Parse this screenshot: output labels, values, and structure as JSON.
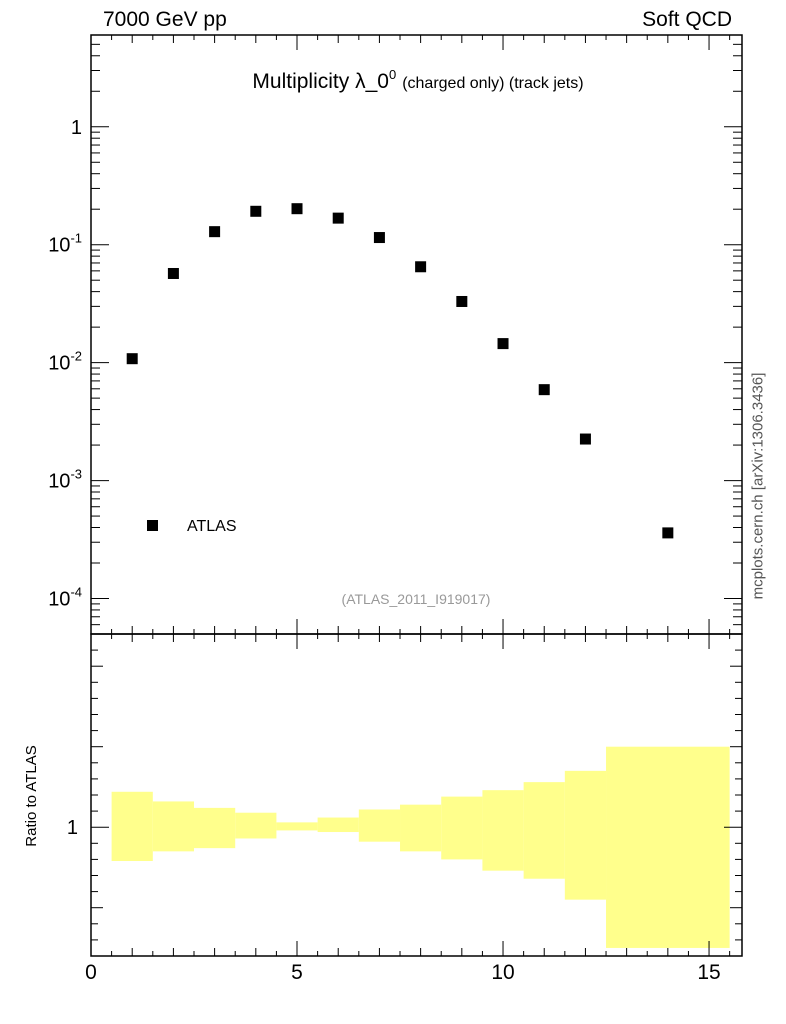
{
  "header": {
    "left": "7000 GeV pp",
    "right": "Soft QCD"
  },
  "side_label": "mcplots.cern.ch [arXiv:1306.3436]",
  "chart_data": [
    {
      "type": "scatter",
      "title": "Multiplicity λ_0",
      "title_superscript": "0",
      "title_suffix": "(charged only) (track jets)",
      "y_scale": "log",
      "xlim": [
        0,
        15.8
      ],
      "ylim": [
        5e-05,
        6
      ],
      "y_tick_labels": [
        "10",
        "10",
        "10",
        "10",
        "1"
      ],
      "y_tick_exponents": [
        "-4",
        "-3",
        "-2",
        "-1",
        ""
      ],
      "legend": {
        "label": "ATLAS",
        "position": "bottom-left"
      },
      "annotation": "(ATLAS_2011_I919017)",
      "marker_color": "#000000",
      "series": [
        {
          "name": "ATLAS",
          "x": [
            1,
            2,
            3,
            4,
            5,
            6,
            7,
            8,
            9,
            10,
            11,
            12,
            14
          ],
          "y": [
            0.0108,
            0.057,
            0.129,
            0.192,
            0.202,
            0.168,
            0.115,
            0.065,
            0.033,
            0.0145,
            0.0059,
            0.00225,
            0.00036
          ]
        }
      ]
    },
    {
      "type": "area",
      "ylabel": "Ratio to ATLAS",
      "xlim": [
        0,
        15.8
      ],
      "ylim": [
        0.2,
        2.2
      ],
      "y_tick_labels": [
        "1"
      ],
      "x_tick_labels": [
        "0",
        "5",
        "10",
        "15"
      ],
      "band_color": "#ffff8c",
      "band": [
        {
          "x": [
            0.5,
            1.5
          ],
          "low": 0.79,
          "high": 1.22
        },
        {
          "x": [
            1.5,
            2.5
          ],
          "low": 0.85,
          "high": 1.16
        },
        {
          "x": [
            2.5,
            3.5
          ],
          "low": 0.87,
          "high": 1.12
        },
        {
          "x": [
            3.5,
            4.5
          ],
          "low": 0.93,
          "high": 1.09
        },
        {
          "x": [
            4.5,
            5.5
          ],
          "low": 0.98,
          "high": 1.03
        },
        {
          "x": [
            5.5,
            6.5
          ],
          "low": 0.97,
          "high": 1.06
        },
        {
          "x": [
            6.5,
            7.5
          ],
          "low": 0.91,
          "high": 1.11
        },
        {
          "x": [
            7.5,
            8.5
          ],
          "low": 0.85,
          "high": 1.14
        },
        {
          "x": [
            8.5,
            9.5
          ],
          "low": 0.8,
          "high": 1.19
        },
        {
          "x": [
            9.5,
            10.5
          ],
          "low": 0.73,
          "high": 1.23
        },
        {
          "x": [
            10.5,
            11.5
          ],
          "low": 0.68,
          "high": 1.28
        },
        {
          "x": [
            11.5,
            12.5
          ],
          "low": 0.55,
          "high": 1.35
        },
        {
          "x": [
            12.5,
            15.5
          ],
          "low": 0.25,
          "high": 1.5
        }
      ]
    }
  ]
}
